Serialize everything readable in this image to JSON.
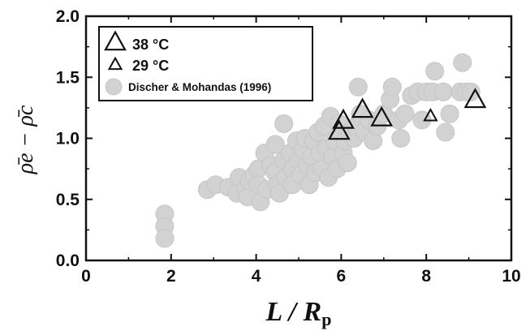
{
  "chart_data": {
    "type": "scatter",
    "xlabel": "L / Rp",
    "ylabel": "ρ̄e − ρ̄c",
    "xlim": [
      0,
      10
    ],
    "ylim": [
      0,
      2.0
    ],
    "xticks": [
      0,
      2,
      4,
      6,
      8,
      10
    ],
    "yticks": [
      0.0,
      0.5,
      1.0,
      1.5,
      2.0
    ],
    "xtick_labels": [
      "0",
      "2",
      "4",
      "6",
      "8",
      "10"
    ],
    "ytick_labels": [
      "0.0",
      "0.5",
      "1.0",
      "1.5",
      "2.0"
    ],
    "legend_position": "top-left",
    "series": [
      {
        "name": "38 °C",
        "marker": "triangle-large",
        "color": "#111111",
        "points": [
          [
            5.95,
            1.05
          ],
          [
            6.05,
            1.14
          ],
          [
            6.5,
            1.23
          ],
          [
            6.95,
            1.16
          ],
          [
            9.15,
            1.31
          ]
        ]
      },
      {
        "name": "29 °C",
        "marker": "triangle-small",
        "color": "#111111",
        "points": [
          [
            8.1,
            1.18
          ]
        ]
      },
      {
        "name": "Discher & Mohandas (1996)",
        "marker": "circle",
        "color": "#d2d2d2",
        "points": [
          [
            1.85,
            0.38
          ],
          [
            1.85,
            0.28
          ],
          [
            1.85,
            0.18
          ],
          [
            2.85,
            0.58
          ],
          [
            3.05,
            0.62
          ],
          [
            3.35,
            0.6
          ],
          [
            3.55,
            0.55
          ],
          [
            3.6,
            0.68
          ],
          [
            3.75,
            0.58
          ],
          [
            3.8,
            0.52
          ],
          [
            3.85,
            0.65
          ],
          [
            3.95,
            0.7
          ],
          [
            4.05,
            0.75
          ],
          [
            4.05,
            0.62
          ],
          [
            4.1,
            0.48
          ],
          [
            4.2,
            0.88
          ],
          [
            4.25,
            0.58
          ],
          [
            4.35,
            0.78
          ],
          [
            4.45,
            0.95
          ],
          [
            4.45,
            0.72
          ],
          [
            4.5,
            0.62
          ],
          [
            4.55,
            0.55
          ],
          [
            4.65,
            0.82
          ],
          [
            4.65,
            1.12
          ],
          [
            4.7,
            0.68
          ],
          [
            4.8,
            0.88
          ],
          [
            4.85,
            0.75
          ],
          [
            4.85,
            0.62
          ],
          [
            4.95,
            0.98
          ],
          [
            5.0,
            0.82
          ],
          [
            5.05,
            0.7
          ],
          [
            5.1,
            0.9
          ],
          [
            5.15,
            1.0
          ],
          [
            5.2,
            0.78
          ],
          [
            5.25,
            0.62
          ],
          [
            5.3,
            0.85
          ],
          [
            5.35,
            0.98
          ],
          [
            5.4,
            0.72
          ],
          [
            5.45,
            1.05
          ],
          [
            5.5,
            0.88
          ],
          [
            5.55,
            0.75
          ],
          [
            5.6,
            1.1
          ],
          [
            5.65,
            0.92
          ],
          [
            5.7,
            0.68
          ],
          [
            5.75,
            1.18
          ],
          [
            5.8,
            0.85
          ],
          [
            5.85,
            0.98
          ],
          [
            5.9,
            0.75
          ],
          [
            5.95,
            1.12
          ],
          [
            6.05,
            0.88
          ],
          [
            6.1,
            0.98
          ],
          [
            6.15,
            0.8
          ],
          [
            6.2,
            1.05
          ],
          [
            6.3,
            1.0
          ],
          [
            6.35,
            1.1
          ],
          [
            6.4,
            1.42
          ],
          [
            6.45,
            1.2
          ],
          [
            6.55,
            1.05
          ],
          [
            6.65,
            1.15
          ],
          [
            6.75,
            0.98
          ],
          [
            6.85,
            1.1
          ],
          [
            7.0,
            1.2
          ],
          [
            7.15,
            1.32
          ],
          [
            7.2,
            1.42
          ],
          [
            7.35,
            1.15
          ],
          [
            7.4,
            1.0
          ],
          [
            7.5,
            1.2
          ],
          [
            7.65,
            1.35
          ],
          [
            7.8,
            1.38
          ],
          [
            7.9,
            1.15
          ],
          [
            8.0,
            1.38
          ],
          [
            8.15,
            1.38
          ],
          [
            8.2,
            1.55
          ],
          [
            8.4,
            1.38
          ],
          [
            8.45,
            1.05
          ],
          [
            8.55,
            1.2
          ],
          [
            8.8,
            1.38
          ],
          [
            8.85,
            1.62
          ],
          [
            8.95,
            1.38
          ],
          [
            9.05,
            1.38
          ]
        ]
      }
    ]
  }
}
